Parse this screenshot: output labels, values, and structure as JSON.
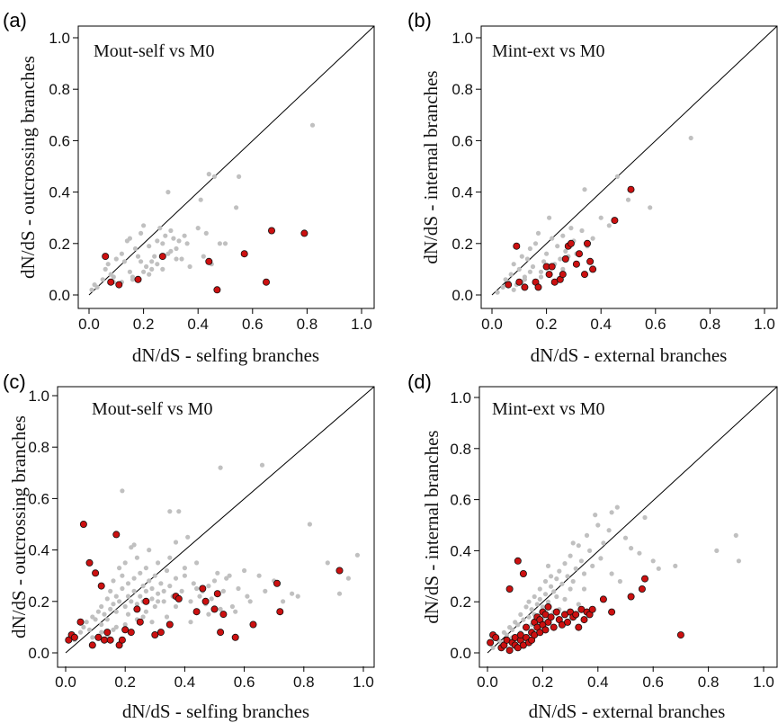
{
  "chart_data": [
    {
      "type": "scatter",
      "panel_label": "(a)",
      "title": "Mout-self vs M0",
      "xlabel": "dN/dS - selfing branches",
      "ylabel": "dN/dS - outcrossing branches",
      "xlim": [
        0,
        1.0
      ],
      "ylim": [
        0,
        1.0
      ],
      "xticks": [
        "0.0",
        "0.2",
        "0.4",
        "0.6",
        "0.8",
        "1.0"
      ],
      "yticks": [
        "0.0",
        "0.2",
        "0.4",
        "0.6",
        "0.8",
        "1.0"
      ],
      "series": [
        {
          "color": "#c0c0c0",
          "x": [
            0.01,
            0.02,
            0.03,
            0.05,
            0.06,
            0.07,
            0.08,
            0.09,
            0.1,
            0.12,
            0.13,
            0.14,
            0.15,
            0.16,
            0.17,
            0.18,
            0.19,
            0.2,
            0.21,
            0.22,
            0.23,
            0.24,
            0.25,
            0.26,
            0.27,
            0.28,
            0.29,
            0.3,
            0.31,
            0.32,
            0.33,
            0.34,
            0.35,
            0.37,
            0.4,
            0.42,
            0.43,
            0.44,
            0.45,
            0.46,
            0.48,
            0.5,
            0.54,
            0.55,
            0.82,
            0.2,
            0.16,
            0.25,
            0.27,
            0.3,
            0.22,
            0.19,
            0.36,
            0.41,
            0.23,
            0.15,
            0.29,
            0.32,
            0.12,
            0.09
          ],
          "y": [
            0.02,
            0.04,
            0.03,
            0.06,
            0.1,
            0.12,
            0.08,
            0.05,
            0.14,
            0.16,
            0.13,
            0.21,
            0.22,
            0.06,
            0.18,
            0.15,
            0.24,
            0.27,
            0.11,
            0.19,
            0.13,
            0.15,
            0.21,
            0.26,
            0.2,
            0.23,
            0.4,
            0.25,
            0.22,
            0.18,
            0.21,
            0.14,
            0.23,
            0.11,
            0.26,
            0.15,
            0.24,
            0.47,
            0.12,
            0.46,
            0.2,
            0.2,
            0.34,
            0.46,
            0.66,
            0.09,
            0.07,
            0.12,
            0.1,
            0.17,
            0.08,
            0.13,
            0.2,
            0.37,
            0.1,
            0.09,
            0.16,
            0.14,
            0.05,
            0.07
          ]
        },
        {
          "color": "#cc1010",
          "x": [
            0.06,
            0.08,
            0.11,
            0.18,
            0.27,
            0.44,
            0.47,
            0.57,
            0.65,
            0.67,
            0.79
          ],
          "y": [
            0.15,
            0.05,
            0.04,
            0.06,
            0.15,
            0.13,
            0.02,
            0.16,
            0.05,
            0.25,
            0.24
          ]
        }
      ]
    },
    {
      "type": "scatter",
      "panel_label": "(b)",
      "title": "Mint-ext vs M0",
      "xlabel": "dN/dS - external branches",
      "ylabel": "dN/dS - internal branches",
      "xlim": [
        0,
        1.0
      ],
      "ylim": [
        0,
        1.0
      ],
      "xticks": [
        "0.0",
        "0.2",
        "0.4",
        "0.6",
        "0.8",
        "1.0"
      ],
      "yticks": [
        "0.0",
        "0.2",
        "0.4",
        "0.6",
        "0.8",
        "1.0"
      ],
      "series": [
        {
          "color": "#c0c0c0",
          "x": [
            0.02,
            0.04,
            0.05,
            0.06,
            0.07,
            0.08,
            0.09,
            0.1,
            0.11,
            0.12,
            0.13,
            0.14,
            0.15,
            0.16,
            0.17,
            0.18,
            0.19,
            0.2,
            0.21,
            0.22,
            0.23,
            0.24,
            0.25,
            0.26,
            0.27,
            0.28,
            0.29,
            0.3,
            0.31,
            0.33,
            0.34,
            0.35,
            0.37,
            0.4,
            0.43,
            0.46,
            0.5,
            0.58,
            0.73,
            0.14,
            0.12,
            0.22,
            0.18,
            0.26,
            0.31,
            0.08,
            0.11
          ],
          "y": [
            0.01,
            0.03,
            0.06,
            0.05,
            0.08,
            0.12,
            0.04,
            0.1,
            0.15,
            0.07,
            0.14,
            0.18,
            0.11,
            0.2,
            0.24,
            0.09,
            0.13,
            0.16,
            0.3,
            0.22,
            0.12,
            0.19,
            0.14,
            0.23,
            0.17,
            0.15,
            0.26,
            0.21,
            0.12,
            0.25,
            0.41,
            0.19,
            0.22,
            0.3,
            0.27,
            0.46,
            0.37,
            0.34,
            0.61,
            0.09,
            0.06,
            0.11,
            0.07,
            0.1,
            0.16,
            0.02,
            0.05
          ],
          "note": ""
        },
        {
          "color": "#cc1010",
          "x": [
            0.06,
            0.09,
            0.1,
            0.12,
            0.16,
            0.17,
            0.2,
            0.21,
            0.22,
            0.23,
            0.25,
            0.26,
            0.27,
            0.28,
            0.29,
            0.31,
            0.32,
            0.34,
            0.35,
            0.36,
            0.37,
            0.45,
            0.51
          ],
          "y": [
            0.04,
            0.19,
            0.05,
            0.03,
            0.05,
            0.03,
            0.11,
            0.08,
            0.11,
            0.05,
            0.06,
            0.08,
            0.14,
            0.19,
            0.2,
            0.12,
            0.16,
            0.08,
            0.2,
            0.13,
            0.1,
            0.29,
            0.41
          ]
        }
      ]
    },
    {
      "type": "scatter",
      "panel_label": "(c)",
      "title": "Mout-self vs M0",
      "xlabel": "dN/dS - selfing branches",
      "ylabel": "dN/dS - outcrossing branches",
      "xlim": [
        0,
        1.0
      ],
      "ylim": [
        0,
        1.0
      ],
      "xticks": [
        "0.0",
        "0.2",
        "0.4",
        "0.6",
        "0.8",
        "1.0"
      ],
      "yticks": [
        "0.0",
        "0.2",
        "0.4",
        "0.6",
        "0.8",
        "1.0"
      ],
      "series": [
        {
          "color": "#c0c0c0",
          "x": [
            0.03,
            0.05,
            0.06,
            0.07,
            0.08,
            0.09,
            0.1,
            0.11,
            0.12,
            0.12,
            0.13,
            0.14,
            0.14,
            0.15,
            0.15,
            0.16,
            0.16,
            0.17,
            0.17,
            0.18,
            0.18,
            0.19,
            0.19,
            0.2,
            0.2,
            0.21,
            0.21,
            0.22,
            0.22,
            0.23,
            0.23,
            0.24,
            0.24,
            0.25,
            0.25,
            0.26,
            0.26,
            0.27,
            0.27,
            0.28,
            0.28,
            0.29,
            0.29,
            0.3,
            0.3,
            0.31,
            0.31,
            0.32,
            0.33,
            0.33,
            0.34,
            0.35,
            0.35,
            0.36,
            0.37,
            0.37,
            0.38,
            0.39,
            0.4,
            0.41,
            0.42,
            0.43,
            0.44,
            0.45,
            0.46,
            0.47,
            0.48,
            0.49,
            0.5,
            0.51,
            0.52,
            0.53,
            0.54,
            0.55,
            0.57,
            0.58,
            0.6,
            0.62,
            0.65,
            0.67,
            0.7,
            0.73,
            0.76,
            0.78,
            0.82,
            0.88,
            0.92,
            0.95,
            0.98,
            0.52,
            0.66,
            0.19,
            0.37,
            0.35,
            0.23,
            0.44,
            0.4,
            0.29,
            0.21,
            0.14,
            0.09,
            0.17,
            0.26,
            0.31,
            0.12,
            0.24,
            0.27,
            0.2,
            0.16,
            0.34,
            0.42,
            0.48,
            0.56,
            0.61
          ],
          "y": [
            0.05,
            0.08,
            0.1,
            0.12,
            0.09,
            0.14,
            0.13,
            0.16,
            0.11,
            0.18,
            0.15,
            0.21,
            0.13,
            0.24,
            0.17,
            0.19,
            0.28,
            0.22,
            0.16,
            0.33,
            0.2,
            0.25,
            0.3,
            0.18,
            0.35,
            0.22,
            0.27,
            0.2,
            0.41,
            0.24,
            0.29,
            0.19,
            0.37,
            0.22,
            0.31,
            0.26,
            0.2,
            0.33,
            0.24,
            0.28,
            0.4,
            0.21,
            0.25,
            0.3,
            0.18,
            0.23,
            0.35,
            0.27,
            0.2,
            0.24,
            0.32,
            0.26,
            0.55,
            0.22,
            0.29,
            0.18,
            0.55,
            0.24,
            0.3,
            0.45,
            0.2,
            0.27,
            0.35,
            0.22,
            0.24,
            0.19,
            0.26,
            0.21,
            0.28,
            0.31,
            0.17,
            0.24,
            0.29,
            0.3,
            0.16,
            0.25,
            0.32,
            0.2,
            0.3,
            0.24,
            0.28,
            0.2,
            0.23,
            0.22,
            0.5,
            0.35,
            0.23,
            0.29,
            0.38,
            0.72,
            0.73,
            0.63,
            0.43,
            0.37,
            0.42,
            0.25,
            0.33,
            0.12,
            0.15,
            0.07,
            0.06,
            0.1,
            0.14,
            0.2,
            0.08,
            0.13,
            0.16,
            0.11,
            0.09,
            0.14,
            0.12,
            0.15,
            0.18,
            0.22
          ]
        },
        {
          "color": "#cc1010",
          "x": [
            0.01,
            0.02,
            0.03,
            0.05,
            0.06,
            0.08,
            0.09,
            0.1,
            0.11,
            0.12,
            0.13,
            0.14,
            0.15,
            0.17,
            0.18,
            0.19,
            0.2,
            0.22,
            0.24,
            0.25,
            0.27,
            0.3,
            0.32,
            0.35,
            0.37,
            0.38,
            0.44,
            0.46,
            0.47,
            0.5,
            0.51,
            0.52,
            0.53,
            0.57,
            0.63,
            0.71,
            0.72,
            0.92
          ],
          "y": [
            0.05,
            0.07,
            0.06,
            0.12,
            0.5,
            0.35,
            0.03,
            0.31,
            0.06,
            0.26,
            0.05,
            0.08,
            0.05,
            0.46,
            0.03,
            0.05,
            0.09,
            0.08,
            0.17,
            0.12,
            0.2,
            0.07,
            0.08,
            0.11,
            0.22,
            0.21,
            0.16,
            0.25,
            0.2,
            0.17,
            0.23,
            0.08,
            0.15,
            0.06,
            0.11,
            0.27,
            0.16,
            0.32
          ]
        }
      ]
    },
    {
      "type": "scatter",
      "panel_label": "(d)",
      "title": "Mint-ext vs M0",
      "xlabel": "dN/dS - external branches",
      "ylabel": "dN/dS - internal branches",
      "xlim": [
        0,
        1.0
      ],
      "ylim": [
        0,
        1.0
      ],
      "xticks": [
        "0.0",
        "0.2",
        "0.4",
        "0.6",
        "0.8",
        "1.0"
      ],
      "yticks": [
        "0.0",
        "0.2",
        "0.4",
        "0.6",
        "0.8",
        "1.0"
      ],
      "series": [
        {
          "color": "#c0c0c0",
          "x": [
            0.02,
            0.04,
            0.05,
            0.06,
            0.07,
            0.08,
            0.09,
            0.1,
            0.11,
            0.12,
            0.13,
            0.14,
            0.15,
            0.15,
            0.16,
            0.17,
            0.17,
            0.18,
            0.19,
            0.19,
            0.2,
            0.21,
            0.21,
            0.22,
            0.23,
            0.23,
            0.24,
            0.25,
            0.25,
            0.26,
            0.27,
            0.28,
            0.29,
            0.3,
            0.3,
            0.31,
            0.32,
            0.33,
            0.34,
            0.35,
            0.36,
            0.37,
            0.38,
            0.4,
            0.41,
            0.42,
            0.44,
            0.45,
            0.47,
            0.5,
            0.52,
            0.55,
            0.57,
            0.6,
            0.62,
            0.68,
            0.83,
            0.9,
            0.91,
            0.31,
            0.39,
            0.35,
            0.28,
            0.22,
            0.45,
            0.48,
            0.33,
            0.26,
            0.18,
            0.12,
            0.09,
            0.14,
            0.2,
            0.24,
            0.16
          ],
          "y": [
            0.02,
            0.05,
            0.04,
            0.08,
            0.07,
            0.1,
            0.09,
            0.12,
            0.11,
            0.15,
            0.13,
            0.18,
            0.14,
            0.2,
            0.17,
            0.22,
            0.15,
            0.19,
            0.25,
            0.21,
            0.18,
            0.23,
            0.28,
            0.2,
            0.26,
            0.3,
            0.24,
            0.29,
            0.22,
            0.32,
            0.27,
            0.35,
            0.3,
            0.25,
            0.38,
            0.28,
            0.33,
            0.42,
            0.36,
            0.31,
            0.46,
            0.4,
            0.34,
            0.5,
            0.37,
            0.43,
            0.48,
            0.55,
            0.57,
            0.45,
            0.41,
            0.39,
            0.53,
            0.36,
            0.33,
            0.34,
            0.4,
            0.46,
            0.36,
            0.43,
            0.54,
            0.25,
            0.21,
            0.34,
            0.31,
            0.28,
            0.19,
            0.17,
            0.12,
            0.08,
            0.06,
            0.1,
            0.13,
            0.16,
            0.11
          ]
        },
        {
          "color": "#cc1010",
          "x": [
            0.01,
            0.02,
            0.03,
            0.05,
            0.06,
            0.07,
            0.08,
            0.09,
            0.1,
            0.1,
            0.11,
            0.12,
            0.12,
            0.13,
            0.14,
            0.14,
            0.15,
            0.16,
            0.16,
            0.17,
            0.17,
            0.18,
            0.18,
            0.19,
            0.19,
            0.2,
            0.2,
            0.21,
            0.21,
            0.22,
            0.22,
            0.23,
            0.24,
            0.25,
            0.26,
            0.27,
            0.28,
            0.29,
            0.3,
            0.31,
            0.32,
            0.33,
            0.34,
            0.35,
            0.36,
            0.37,
            0.38,
            0.42,
            0.45,
            0.52,
            0.56,
            0.57,
            0.7,
            0.08,
            0.11,
            0.13
          ],
          "y": [
            0.04,
            0.07,
            0.06,
            0.02,
            0.03,
            0.05,
            0.01,
            0.04,
            0.03,
            0.06,
            0.02,
            0.05,
            0.07,
            0.03,
            0.06,
            0.1,
            0.04,
            0.08,
            0.05,
            0.12,
            0.07,
            0.1,
            0.14,
            0.08,
            0.13,
            0.11,
            0.16,
            0.09,
            0.15,
            0.12,
            0.18,
            0.14,
            0.1,
            0.16,
            0.13,
            0.11,
            0.15,
            0.12,
            0.16,
            0.14,
            0.15,
            0.1,
            0.17,
            0.13,
            0.16,
            0.15,
            0.17,
            0.21,
            0.16,
            0.22,
            0.25,
            0.29,
            0.07,
            0.25,
            0.36,
            0.31
          ]
        }
      ]
    }
  ]
}
